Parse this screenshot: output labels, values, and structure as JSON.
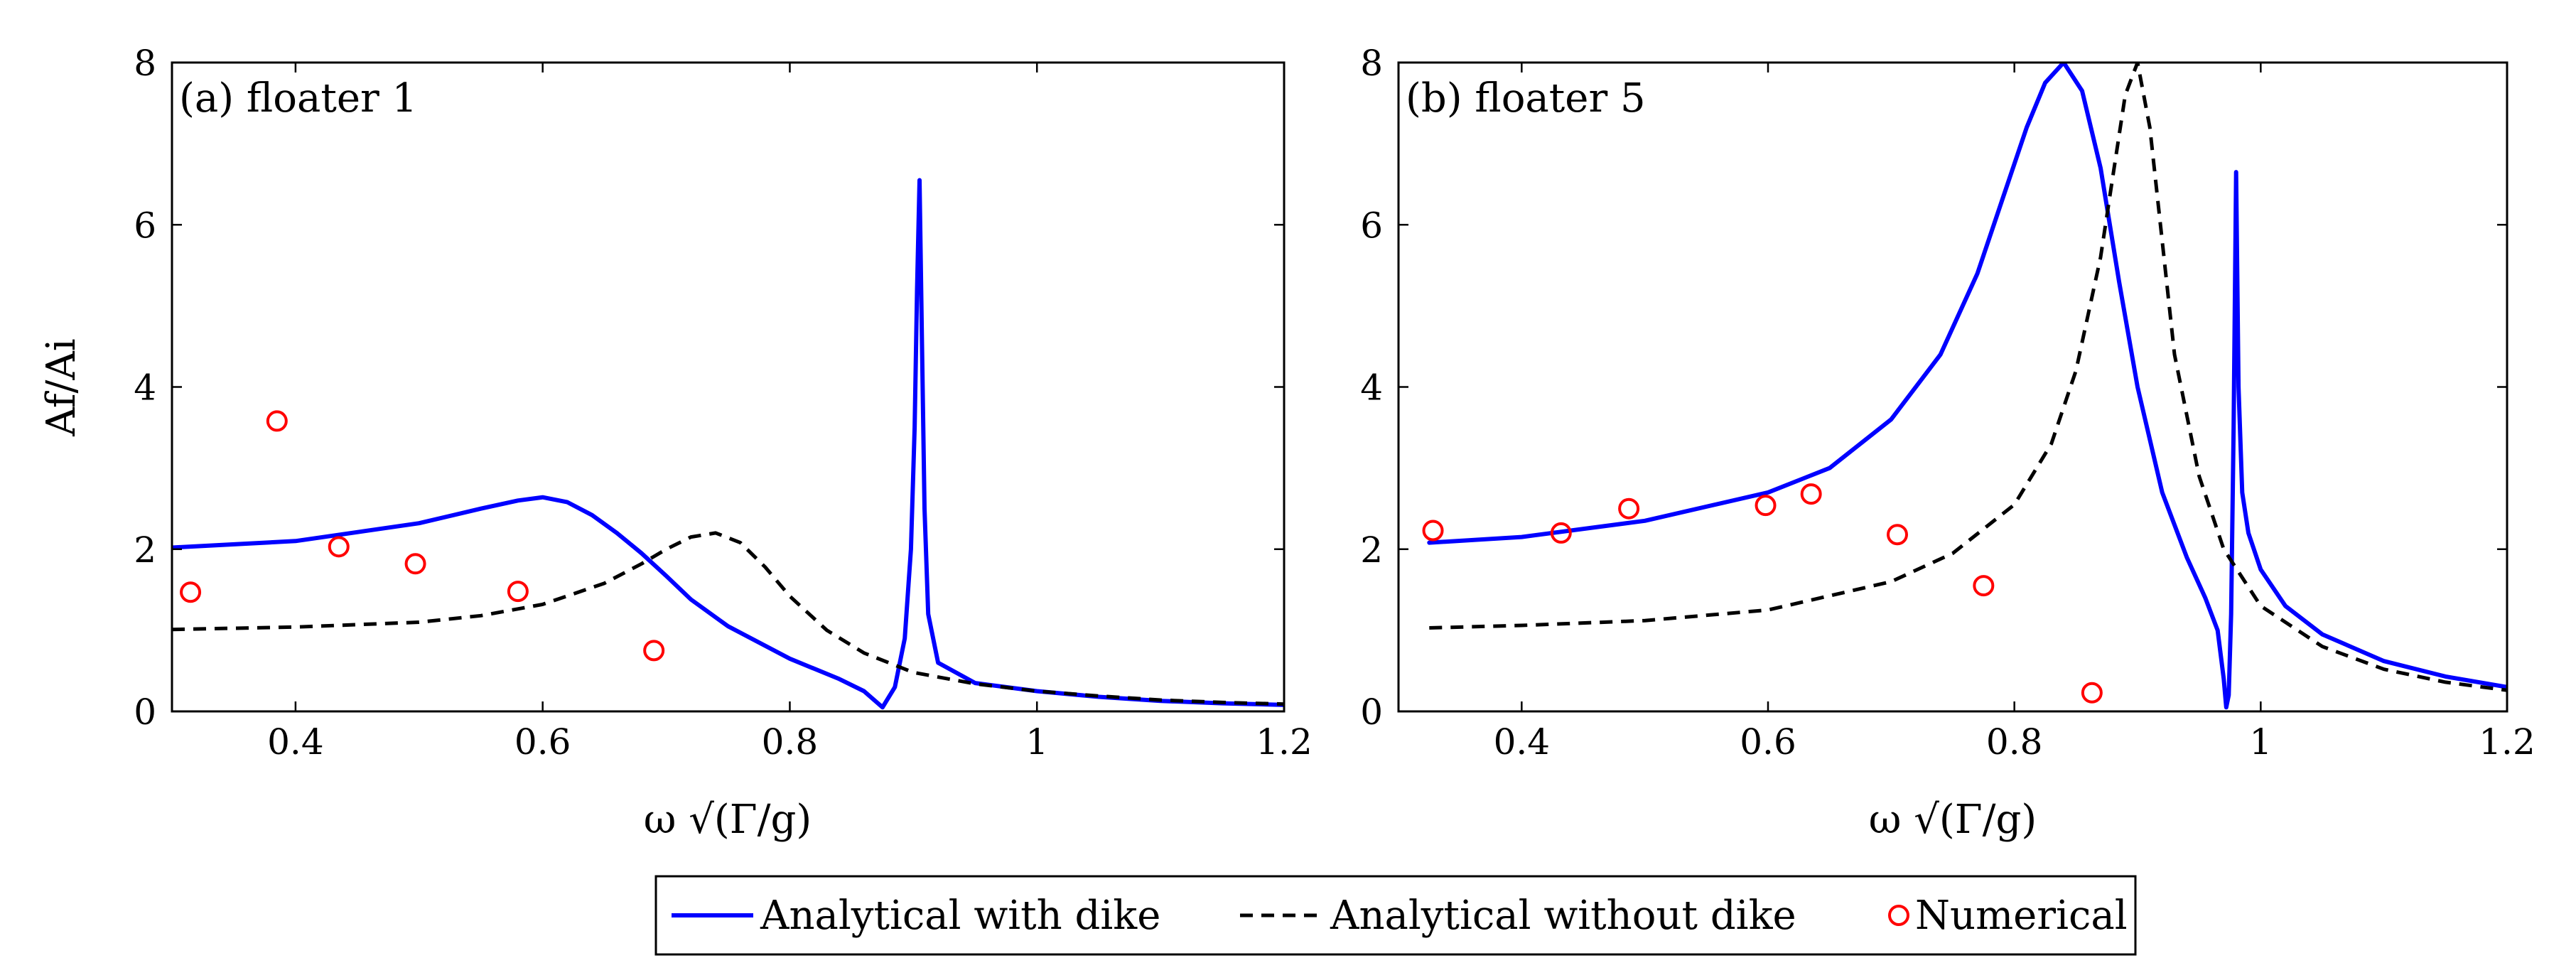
{
  "chart_data": [
    {
      "type": "line",
      "panel_label": "(a) floater 1",
      "xlabel": "ω √(Γ/g)",
      "ylabel": "Af/Ai",
      "xlim": [
        0.3,
        1.2
      ],
      "ylim": [
        0,
        8
      ],
      "xticks": [
        0.4,
        0.6,
        0.8,
        1.0,
        1.2
      ],
      "xtick_labels": [
        "0.4",
        "0.6",
        "0.8",
        "1",
        "1.2"
      ],
      "yticks": [
        0,
        2,
        4,
        6,
        8
      ],
      "ytick_labels": [
        "0",
        "2",
        "4",
        "6",
        "8"
      ],
      "series": [
        {
          "name": "Analytical with dike",
          "style": "solid",
          "color": "#0000ff",
          "x": [
            0.3,
            0.4,
            0.5,
            0.55,
            0.58,
            0.6,
            0.62,
            0.64,
            0.66,
            0.68,
            0.7,
            0.72,
            0.75,
            0.8,
            0.84,
            0.86,
            0.875,
            0.885,
            0.893,
            0.898,
            0.901,
            0.903,
            0.905,
            0.907,
            0.909,
            0.912,
            0.92,
            0.95,
            1.0,
            1.05,
            1.1,
            1.15,
            1.2
          ],
          "y": [
            2.02,
            2.1,
            2.32,
            2.5,
            2.6,
            2.64,
            2.58,
            2.42,
            2.2,
            1.95,
            1.67,
            1.38,
            1.05,
            0.65,
            0.4,
            0.25,
            0.05,
            0.3,
            0.9,
            2.0,
            3.5,
            5.2,
            6.55,
            4.5,
            2.5,
            1.2,
            0.6,
            0.35,
            0.25,
            0.18,
            0.13,
            0.1,
            0.08
          ]
        },
        {
          "name": "Analytical without dike",
          "style": "dashed",
          "color": "#000000",
          "x": [
            0.3,
            0.4,
            0.5,
            0.55,
            0.6,
            0.65,
            0.68,
            0.7,
            0.72,
            0.74,
            0.76,
            0.78,
            0.8,
            0.83,
            0.86,
            0.9,
            0.95,
            1.0,
            1.05,
            1.1,
            1.15,
            1.2
          ],
          "y": [
            1.01,
            1.04,
            1.1,
            1.18,
            1.32,
            1.58,
            1.82,
            2.0,
            2.15,
            2.2,
            2.08,
            1.78,
            1.42,
            1.0,
            0.72,
            0.48,
            0.34,
            0.25,
            0.19,
            0.14,
            0.11,
            0.09
          ]
        },
        {
          "name": "Numerical",
          "style": "markers",
          "color": "#ff0000",
          "x": [
            0.315,
            0.385,
            0.435,
            0.497,
            0.58,
            0.69
          ],
          "y": [
            1.47,
            3.58,
            2.03,
            1.82,
            1.48,
            0.75
          ]
        }
      ]
    },
    {
      "type": "line",
      "panel_label": "(b) floater 5",
      "xlabel": "ω √(Γ/g)",
      "ylabel": "",
      "xlim": [
        0.3,
        1.2
      ],
      "ylim": [
        0,
        8
      ],
      "xticks": [
        0.4,
        0.6,
        0.8,
        1.0,
        1.2
      ],
      "xtick_labels": [
        "0.4",
        "0.6",
        "0.8",
        "1",
        "1.2"
      ],
      "yticks": [
        0,
        2,
        4,
        6,
        8
      ],
      "ytick_labels": [
        "0",
        "2",
        "4",
        "6",
        "8"
      ],
      "series": [
        {
          "name": "Analytical with dike",
          "style": "solid",
          "color": "#0000ff",
          "x": [
            0.325,
            0.4,
            0.5,
            0.6,
            0.65,
            0.7,
            0.74,
            0.77,
            0.79,
            0.81,
            0.825,
            0.84,
            0.855,
            0.87,
            0.885,
            0.9,
            0.92,
            0.94,
            0.955,
            0.965,
            0.97,
            0.972,
            0.974,
            0.976,
            0.978,
            0.98,
            0.982,
            0.985,
            0.99,
            1.0,
            1.02,
            1.05,
            1.1,
            1.15,
            1.2
          ],
          "y": [
            2.08,
            2.15,
            2.35,
            2.7,
            3.0,
            3.6,
            4.4,
            5.4,
            6.3,
            7.2,
            7.75,
            8.0,
            7.65,
            6.7,
            5.3,
            4.0,
            2.7,
            1.9,
            1.4,
            1.0,
            0.4,
            0.05,
            0.2,
            1.2,
            3.5,
            6.65,
            4.0,
            2.7,
            2.2,
            1.75,
            1.3,
            0.95,
            0.62,
            0.43,
            0.3
          ]
        },
        {
          "name": "Analytical without dike",
          "style": "dashed",
          "color": "#000000",
          "x": [
            0.325,
            0.4,
            0.5,
            0.6,
            0.7,
            0.75,
            0.8,
            0.83,
            0.85,
            0.87,
            0.88,
            0.89,
            0.9,
            0.91,
            0.92,
            0.93,
            0.95,
            0.97,
            1.0,
            1.05,
            1.1,
            1.15,
            1.2
          ],
          "y": [
            1.03,
            1.06,
            1.12,
            1.25,
            1.6,
            1.95,
            2.55,
            3.3,
            4.2,
            5.6,
            6.6,
            7.6,
            8.0,
            7.2,
            5.8,
            4.4,
            2.9,
            2.0,
            1.3,
            0.8,
            0.52,
            0.36,
            0.26
          ]
        },
        {
          "name": "Numerical",
          "style": "markers",
          "color": "#ff0000",
          "x": [
            0.328,
            0.432,
            0.487,
            0.598,
            0.635,
            0.705,
            0.775,
            0.863
          ],
          "y": [
            2.23,
            2.2,
            2.5,
            2.54,
            2.68,
            2.18,
            1.55,
            0.23
          ]
        }
      ]
    }
  ],
  "legend": {
    "placement": "bottom-center",
    "entries": [
      {
        "label": "Analytical with dike",
        "style": "solid",
        "color": "#0000ff"
      },
      {
        "label": "Analytical without dike",
        "style": "dashed",
        "color": "#000000"
      },
      {
        "label": "Numerical",
        "style": "marker",
        "color": "#ff0000"
      }
    ]
  }
}
